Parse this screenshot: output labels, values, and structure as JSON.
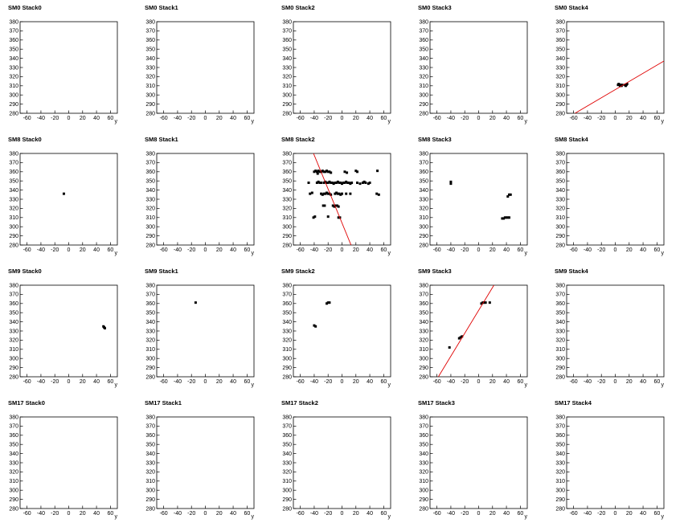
{
  "chart_data": [
    {
      "type": "scatter",
      "title": "SM0 Stack0",
      "xlabel": "y",
      "xlim": [
        -70,
        70
      ],
      "ylim": [
        280,
        380
      ],
      "xticks": [
        -60,
        -40,
        -20,
        0,
        20,
        40,
        60
      ],
      "yticks": [
        280,
        290,
        300,
        310,
        320,
        330,
        340,
        350,
        360,
        370,
        380
      ]
    },
    {
      "type": "scatter",
      "title": "SM0 Stack1",
      "xlabel": "y",
      "xlim": [
        -70,
        70
      ],
      "ylim": [
        280,
        380
      ],
      "xticks": [
        -60,
        -40,
        -20,
        0,
        20,
        40,
        60
      ],
      "yticks": [
        280,
        290,
        300,
        310,
        320,
        330,
        340,
        350,
        360,
        370,
        380
      ]
    },
    {
      "type": "scatter",
      "title": "SM0 Stack2",
      "xlabel": "y",
      "xlim": [
        -70,
        70
      ],
      "ylim": [
        280,
        380
      ],
      "xticks": [
        -60,
        -40,
        -20,
        0,
        20,
        40,
        60
      ],
      "yticks": [
        280,
        290,
        300,
        310,
        320,
        330,
        340,
        350,
        360,
        370,
        380
      ]
    },
    {
      "type": "scatter",
      "title": "SM0 Stack3",
      "xlabel": "y",
      "xlim": [
        -70,
        70
      ],
      "ylim": [
        280,
        380
      ],
      "xticks": [
        -60,
        -40,
        -20,
        0,
        20,
        40,
        60
      ],
      "yticks": [
        280,
        290,
        300,
        310,
        320,
        330,
        340,
        350,
        360,
        370,
        380
      ]
    },
    {
      "type": "scatter",
      "title": "SM0 Stack4",
      "xlabel": "y",
      "xlim": [
        -70,
        70
      ],
      "ylim": [
        280,
        380
      ],
      "xticks": [
        -60,
        -40,
        -20,
        0,
        20,
        40,
        60
      ],
      "yticks": [
        280,
        290,
        300,
        310,
        320,
        330,
        340,
        350,
        360,
        370,
        380
      ],
      "series": [
        {
          "color": "#000000",
          "x": [
            4,
            5,
            6,
            7,
            8,
            9,
            10,
            14,
            15,
            16,
            17
          ],
          "y": [
            311,
            312,
            311,
            310,
            311,
            310,
            311,
            311,
            310,
            311,
            312
          ]
        }
      ],
      "lines": [
        {
          "color": "#e00000",
          "x": [
            -58,
            70
          ],
          "y": [
            280,
            337
          ]
        }
      ]
    },
    {
      "type": "scatter",
      "title": "SM8 Stack0",
      "xlabel": "y",
      "xlim": [
        -70,
        70
      ],
      "ylim": [
        280,
        380
      ],
      "xticks": [
        -60,
        -40,
        -20,
        0,
        20,
        40,
        60
      ],
      "yticks": [
        280,
        290,
        300,
        310,
        320,
        330,
        340,
        350,
        360,
        370,
        380
      ],
      "series": [
        {
          "color": "#000000",
          "x": [
            -7
          ],
          "y": [
            336
          ]
        }
      ]
    },
    {
      "type": "scatter",
      "title": "SM8 Stack1",
      "xlabel": "y",
      "xlim": [
        -70,
        70
      ],
      "ylim": [
        280,
        380
      ],
      "xticks": [
        -60,
        -40,
        -20,
        0,
        20,
        40,
        60
      ],
      "yticks": [
        280,
        290,
        300,
        310,
        320,
        330,
        340,
        350,
        360,
        370,
        380
      ]
    },
    {
      "type": "scatter",
      "title": "SM8 Stack2",
      "xlabel": "y",
      "xlim": [
        -70,
        70
      ],
      "ylim": [
        280,
        380
      ],
      "xticks": [
        -60,
        -40,
        -20,
        0,
        20,
        40,
        60
      ],
      "yticks": [
        280,
        290,
        300,
        310,
        320,
        330,
        340,
        350,
        360,
        370,
        380
      ],
      "series": [
        {
          "color": "#000000",
          "x": [
            -40,
            -38,
            -36,
            -35,
            -34,
            -32,
            -30,
            -28,
            -26,
            -24,
            -22,
            -20,
            -18,
            -16,
            4,
            7,
            20,
            22,
            51,
            -48,
            -36,
            -34,
            -32,
            -30,
            -26,
            -24,
            -22,
            -20,
            -18,
            -16,
            -14,
            -12,
            -10,
            -8,
            -6,
            -4,
            -2,
            0,
            2,
            4,
            6,
            8,
            10,
            12,
            14,
            22,
            26,
            30,
            32,
            34,
            38,
            40,
            -46,
            -43,
            -30,
            -28,
            -26,
            -24,
            -22,
            -20,
            -18,
            -16,
            -10,
            -8,
            -6,
            -4,
            -2,
            0,
            6,
            12,
            50,
            53,
            -27,
            -25,
            -13,
            -11,
            -9,
            -7,
            -5,
            -41,
            -39,
            -20,
            -5,
            -3
          ],
          "y": [
            360,
            361,
            360,
            358,
            361,
            360,
            360,
            361,
            360,
            360,
            361,
            360,
            360,
            359,
            360,
            359,
            361,
            360,
            361,
            348,
            348,
            349,
            348,
            348,
            348,
            349,
            348,
            348,
            349,
            348,
            348,
            347,
            348,
            348,
            349,
            348,
            348,
            347,
            348,
            348,
            349,
            348,
            348,
            347,
            348,
            348,
            347,
            348,
            349,
            348,
            347,
            348,
            336,
            337,
            336,
            335,
            336,
            336,
            337,
            336,
            336,
            335,
            336,
            337,
            336,
            336,
            335,
            336,
            336,
            336,
            336,
            335,
            323,
            323,
            323,
            322,
            323,
            323,
            322,
            310,
            311,
            311,
            310,
            310
          ]
        }
      ],
      "lines": [
        {
          "color": "#e00000",
          "x": [
            -41,
            13
          ],
          "y": [
            380,
            280
          ]
        }
      ]
    },
    {
      "type": "scatter",
      "title": "SM8 Stack3",
      "xlabel": "y",
      "xlim": [
        -70,
        70
      ],
      "ylim": [
        280,
        380
      ],
      "xticks": [
        -60,
        -40,
        -20,
        0,
        20,
        40,
        60
      ],
      "yticks": [
        280,
        290,
        300,
        310,
        320,
        330,
        340,
        350,
        360,
        370,
        380
      ],
      "series": [
        {
          "color": "#000000",
          "x": [
            -40,
            -40,
            42,
            44,
            46,
            34,
            36,
            38,
            40,
            42,
            44
          ],
          "y": [
            347,
            349,
            333,
            335,
            335,
            309,
            309,
            310,
            310,
            310,
            310
          ]
        }
      ]
    },
    {
      "type": "scatter",
      "title": "SM8 Stack4",
      "xlabel": "y",
      "xlim": [
        -70,
        70
      ],
      "ylim": [
        280,
        380
      ],
      "xticks": [
        -60,
        -40,
        -20,
        0,
        20,
        40,
        60
      ],
      "yticks": [
        280,
        290,
        300,
        310,
        320,
        330,
        340,
        350,
        360,
        370,
        380
      ]
    },
    {
      "type": "scatter",
      "title": "SM9 Stack0",
      "xlabel": "y",
      "xlim": [
        -70,
        70
      ],
      "ylim": [
        280,
        380
      ],
      "xticks": [
        -60,
        -40,
        -20,
        0,
        20,
        40,
        60
      ],
      "yticks": [
        280,
        290,
        300,
        310,
        320,
        330,
        340,
        350,
        360,
        370,
        380
      ],
      "series": [
        {
          "color": "#000000",
          "x": [
            50,
            51,
            52
          ],
          "y": [
            335,
            334,
            333
          ]
        }
      ]
    },
    {
      "type": "scatter",
      "title": "SM9 Stack1",
      "xlabel": "y",
      "xlim": [
        -70,
        70
      ],
      "ylim": [
        280,
        380
      ],
      "xticks": [
        -60,
        -40,
        -20,
        0,
        20,
        40,
        60
      ],
      "yticks": [
        280,
        290,
        300,
        310,
        320,
        330,
        340,
        350,
        360,
        370,
        380
      ],
      "series": [
        {
          "color": "#000000",
          "x": [
            -14
          ],
          "y": [
            361
          ]
        }
      ]
    },
    {
      "type": "scatter",
      "title": "SM9 Stack2",
      "xlabel": "y",
      "xlim": [
        -70,
        70
      ],
      "ylim": [
        280,
        380
      ],
      "xticks": [
        -60,
        -40,
        -20,
        0,
        20,
        40,
        60
      ],
      "yticks": [
        280,
        290,
        300,
        310,
        320,
        330,
        340,
        350,
        360,
        370,
        380
      ],
      "series": [
        {
          "color": "#000000",
          "x": [
            -40,
            -38,
            -22,
            -20,
            -18
          ],
          "y": [
            336,
            335,
            360,
            361,
            361
          ]
        }
      ]
    },
    {
      "type": "scatter",
      "title": "SM9 Stack3",
      "xlabel": "y",
      "xlim": [
        -70,
        70
      ],
      "ylim": [
        280,
        380
      ],
      "xticks": [
        -60,
        -40,
        -20,
        0,
        20,
        40,
        60
      ],
      "yticks": [
        280,
        290,
        300,
        310,
        320,
        330,
        340,
        350,
        360,
        370,
        380
      ],
      "series": [
        {
          "color": "#000000",
          "x": [
            -42,
            -28,
            -26,
            -24,
            4,
            6,
            8,
            10,
            16
          ],
          "y": [
            312,
            322,
            323,
            324,
            360,
            361,
            361,
            361,
            361
          ]
        }
      ],
      "lines": [
        {
          "color": "#e00000",
          "x": [
            -58,
            22
          ],
          "y": [
            280,
            380
          ]
        }
      ]
    },
    {
      "type": "scatter",
      "title": "SM9 Stack4",
      "xlabel": "y",
      "xlim": [
        -70,
        70
      ],
      "ylim": [
        280,
        380
      ],
      "xticks": [
        -60,
        -40,
        -20,
        0,
        20,
        40,
        60
      ],
      "yticks": [
        280,
        290,
        300,
        310,
        320,
        330,
        340,
        350,
        360,
        370,
        380
      ]
    },
    {
      "type": "scatter",
      "title": "SM17 Stack0",
      "xlabel": "y",
      "xlim": [
        -70,
        70
      ],
      "ylim": [
        280,
        380
      ],
      "xticks": [
        -60,
        -40,
        -20,
        0,
        20,
        40,
        60
      ],
      "yticks": [
        280,
        290,
        300,
        310,
        320,
        330,
        340,
        350,
        360,
        370,
        380
      ]
    },
    {
      "type": "scatter",
      "title": "SM17 Stack1",
      "xlabel": "y",
      "xlim": [
        -70,
        70
      ],
      "ylim": [
        280,
        380
      ],
      "xticks": [
        -60,
        -40,
        -20,
        0,
        20,
        40,
        60
      ],
      "yticks": [
        280,
        290,
        300,
        310,
        320,
        330,
        340,
        350,
        360,
        370,
        380
      ]
    },
    {
      "type": "scatter",
      "title": "SM17 Stack2",
      "xlabel": "y",
      "xlim": [
        -70,
        70
      ],
      "ylim": [
        280,
        380
      ],
      "xticks": [
        -60,
        -40,
        -20,
        0,
        20,
        40,
        60
      ],
      "yticks": [
        280,
        290,
        300,
        310,
        320,
        330,
        340,
        350,
        360,
        370,
        380
      ]
    },
    {
      "type": "scatter",
      "title": "SM17 Stack3",
      "xlabel": "y",
      "xlim": [
        -70,
        70
      ],
      "ylim": [
        280,
        380
      ],
      "xticks": [
        -60,
        -40,
        -20,
        0,
        20,
        40,
        60
      ],
      "yticks": [
        280,
        290,
        300,
        310,
        320,
        330,
        340,
        350,
        360,
        370,
        380
      ]
    },
    {
      "type": "scatter",
      "title": "SM17 Stack4",
      "xlabel": "y",
      "xlim": [
        -70,
        70
      ],
      "ylim": [
        280,
        380
      ],
      "xticks": [
        -60,
        -40,
        -20,
        0,
        20,
        40,
        60
      ],
      "yticks": [
        280,
        290,
        300,
        310,
        320,
        330,
        340,
        350,
        360,
        370,
        380
      ]
    }
  ]
}
